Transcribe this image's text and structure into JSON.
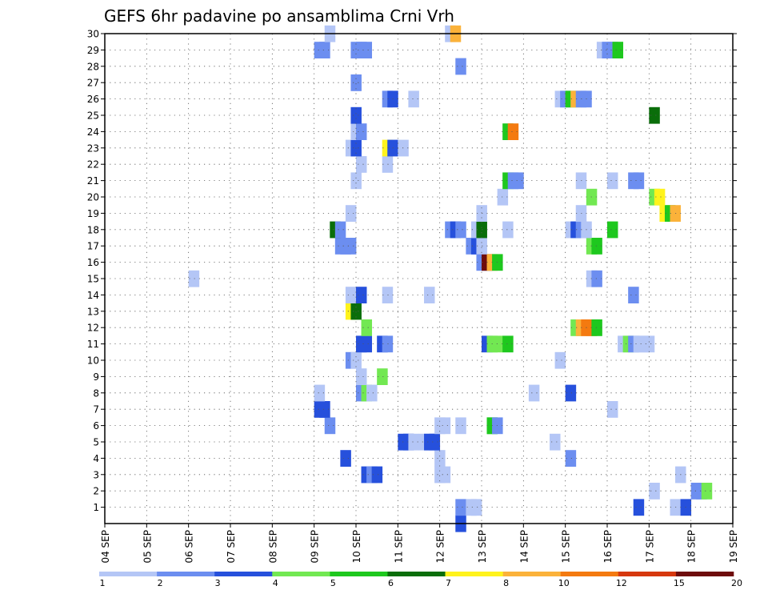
{
  "chart_data": {
    "type": "heatmap",
    "title": "GEFS 6hr padavine po ansamblima Crni Vrh",
    "x_ticks": [
      "04 SEP",
      "05 SEP",
      "06 SEP",
      "07 SEP",
      "08 SEP",
      "09 SEP",
      "10 SEP",
      "11 SEP",
      "12 SEP",
      "13 SEP",
      "14 SEP",
      "15 SEP",
      "16 SEP",
      "17 SEP",
      "18 SEP",
      "19 SEP"
    ],
    "y_ticks": [
      1,
      2,
      3,
      4,
      5,
      6,
      7,
      8,
      9,
      10,
      11,
      12,
      13,
      14,
      15,
      16,
      17,
      18,
      19,
      20,
      21,
      22,
      23,
      24,
      25,
      26,
      27,
      28,
      29,
      30
    ],
    "x_range": [
      "04 SEP",
      "19 SEP"
    ],
    "y_range": [
      0,
      30
    ],
    "steps_per_day": 4,
    "grid": true,
    "colorbar": {
      "labels": [
        "1",
        "2",
        "3",
        "4",
        "5",
        "6",
        "7",
        "8",
        "10",
        "12",
        "15",
        "20"
      ],
      "colors": [
        "#b4c6f6",
        "#6c8ef0",
        "#2650dc",
        "#72e852",
        "#1ec81e",
        "#0a6e0a",
        "#fff31c",
        "#fbb23a",
        "#f47a10",
        "#d6380e",
        "#6e0c0c"
      ]
    },
    "cells": [
      {
        "m": 0,
        "s": [
          [
            33.5,
            3
          ]
        ]
      },
      {
        "m": 1,
        "s": [
          [
            33.5,
            2
          ],
          [
            34.5,
            1
          ],
          [
            35,
            1
          ],
          [
            50.5,
            3
          ],
          [
            54,
            1
          ],
          [
            55,
            3
          ]
        ]
      },
      {
        "m": 2,
        "s": [
          [
            52,
            1
          ],
          [
            56,
            2
          ],
          [
            56.5,
            2
          ],
          [
            57,
            4
          ]
        ]
      },
      {
        "m": 3,
        "s": [
          [
            24.5,
            3
          ],
          [
            25,
            2
          ],
          [
            25.5,
            3
          ],
          [
            31.5,
            1
          ],
          [
            32,
            1
          ],
          [
            54.5,
            1
          ]
        ]
      },
      {
        "m": 4,
        "s": [
          [
            22.5,
            3
          ],
          [
            31.5,
            1
          ],
          [
            44,
            2
          ]
        ]
      },
      {
        "m": 5,
        "s": [
          [
            28,
            3
          ],
          [
            28.5,
            3
          ],
          [
            29,
            1
          ],
          [
            30,
            1
          ],
          [
            30.5,
            3
          ],
          [
            31,
            3
          ],
          [
            42.5,
            1
          ]
        ]
      },
      {
        "m": 6,
        "s": [
          [
            21,
            2
          ],
          [
            31.5,
            1
          ],
          [
            32,
            1
          ],
          [
            33.5,
            1
          ],
          [
            36.5,
            5
          ],
          [
            36.5,
            5
          ],
          [
            37,
            2
          ]
        ]
      },
      {
        "m": 7,
        "s": [
          [
            20,
            3
          ],
          [
            20.5,
            3
          ],
          [
            48,
            1
          ]
        ]
      },
      {
        "m": 8,
        "s": [
          [
            20,
            1
          ],
          [
            24,
            2
          ],
          [
            24.5,
            4
          ],
          [
            25,
            1
          ],
          [
            40.5,
            1
          ],
          [
            44,
            3
          ]
        ]
      },
      {
        "m": 9,
        "s": [
          [
            24,
            1
          ],
          [
            26,
            4
          ]
        ]
      },
      {
        "m": 10,
        "s": [
          [
            23,
            2
          ],
          [
            23.5,
            1
          ],
          [
            43,
            1
          ]
        ]
      },
      {
        "m": 11,
        "s": [
          [
            24,
            3
          ],
          [
            24.5,
            3
          ],
          [
            26,
            3
          ],
          [
            26.5,
            2
          ],
          [
            36,
            3
          ],
          [
            36.5,
            4
          ],
          [
            37,
            4
          ],
          [
            38,
            5
          ],
          [
            49,
            1
          ],
          [
            49.5,
            4
          ],
          [
            50,
            2
          ],
          [
            50.5,
            1
          ],
          [
            51,
            1
          ],
          [
            51.5,
            1
          ]
        ]
      },
      {
        "m": 12,
        "s": [
          [
            24.5,
            4
          ],
          [
            44.5,
            4
          ],
          [
            45,
            8
          ],
          [
            45.5,
            10
          ],
          [
            46,
            10
          ],
          [
            46.5,
            5
          ]
        ]
      },
      {
        "m": 13,
        "s": [
          [
            23,
            7
          ],
          [
            23.5,
            6
          ]
        ]
      },
      {
        "m": 14,
        "s": [
          [
            23,
            1
          ],
          [
            24,
            3
          ],
          [
            26.5,
            1
          ],
          [
            30.5,
            1
          ],
          [
            50,
            2
          ]
        ]
      },
      {
        "m": 15,
        "s": [
          [
            8,
            1
          ],
          [
            46,
            1
          ],
          [
            46.5,
            2
          ]
        ]
      },
      {
        "m": 16,
        "s": [
          [
            35.5,
            2
          ],
          [
            36,
            20
          ],
          [
            36.5,
            9
          ],
          [
            37,
            5
          ]
        ]
      },
      {
        "m": 17,
        "s": [
          [
            22,
            2
          ],
          [
            22.5,
            2
          ],
          [
            23,
            2
          ],
          [
            34.5,
            2
          ],
          [
            35,
            3
          ],
          [
            35.5,
            1
          ],
          [
            46,
            4
          ],
          [
            46.5,
            5
          ]
        ]
      },
      {
        "m": 18,
        "s": [
          [
            21.5,
            6
          ],
          [
            22,
            2
          ],
          [
            32.5,
            2
          ],
          [
            33,
            3
          ],
          [
            33.5,
            2
          ],
          [
            35,
            1
          ],
          [
            35.5,
            6
          ],
          [
            38,
            1
          ],
          [
            44,
            1
          ],
          [
            44.5,
            3
          ],
          [
            45,
            2
          ],
          [
            45.5,
            1
          ],
          [
            48,
            5
          ]
        ]
      },
      {
        "m": 19,
        "s": [
          [
            23,
            1
          ],
          [
            35.5,
            1
          ],
          [
            45,
            1
          ],
          [
            53,
            7
          ],
          [
            53.5,
            5
          ],
          [
            54,
            9
          ]
        ]
      },
      {
        "m": 20,
        "s": [
          [
            37.5,
            1
          ],
          [
            46,
            4
          ],
          [
            52,
            4
          ],
          [
            52.5,
            7
          ]
        ]
      },
      {
        "m": 21,
        "s": [
          [
            23.5,
            1
          ],
          [
            38,
            5
          ],
          [
            38.5,
            2
          ],
          [
            39,
            2
          ],
          [
            45,
            1
          ],
          [
            48,
            1
          ],
          [
            50,
            2
          ],
          [
            50.5,
            2
          ]
        ]
      },
      {
        "m": 22,
        "s": [
          [
            24,
            1
          ],
          [
            26.5,
            1
          ]
        ]
      },
      {
        "m": 23,
        "s": [
          [
            23,
            1
          ],
          [
            23.5,
            3
          ],
          [
            26.5,
            7
          ],
          [
            27,
            3
          ],
          [
            28,
            1
          ]
        ]
      },
      {
        "m": 24,
        "s": [
          [
            23.5,
            1
          ],
          [
            24,
            2
          ],
          [
            38,
            5
          ],
          [
            38.5,
            11
          ]
        ]
      },
      {
        "m": 25,
        "s": [
          [
            23.5,
            3
          ],
          [
            52,
            6
          ]
        ]
      },
      {
        "m": 26,
        "s": [
          [
            26.5,
            2
          ],
          [
            27,
            3
          ],
          [
            29,
            1
          ],
          [
            43,
            1
          ],
          [
            43.5,
            2
          ],
          [
            44,
            5
          ],
          [
            44.5,
            9
          ],
          [
            45,
            2
          ],
          [
            45.5,
            2
          ]
        ]
      },
      {
        "m": 27,
        "s": [
          [
            23.5,
            2
          ]
        ]
      },
      {
        "m": 28,
        "s": [
          [
            33.5,
            2
          ]
        ]
      },
      {
        "m": 29,
        "s": [
          [
            20,
            2
          ],
          [
            20.5,
            2
          ],
          [
            23.5,
            2
          ],
          [
            24,
            2
          ],
          [
            24.5,
            2
          ],
          [
            47,
            1
          ],
          [
            47.5,
            2
          ],
          [
            48,
            2
          ],
          [
            48.5,
            5
          ]
        ]
      },
      {
        "m": 30,
        "s": [
          [
            21,
            1
          ],
          [
            32.5,
            1
          ],
          [
            33,
            8
          ]
        ]
      }
    ]
  }
}
